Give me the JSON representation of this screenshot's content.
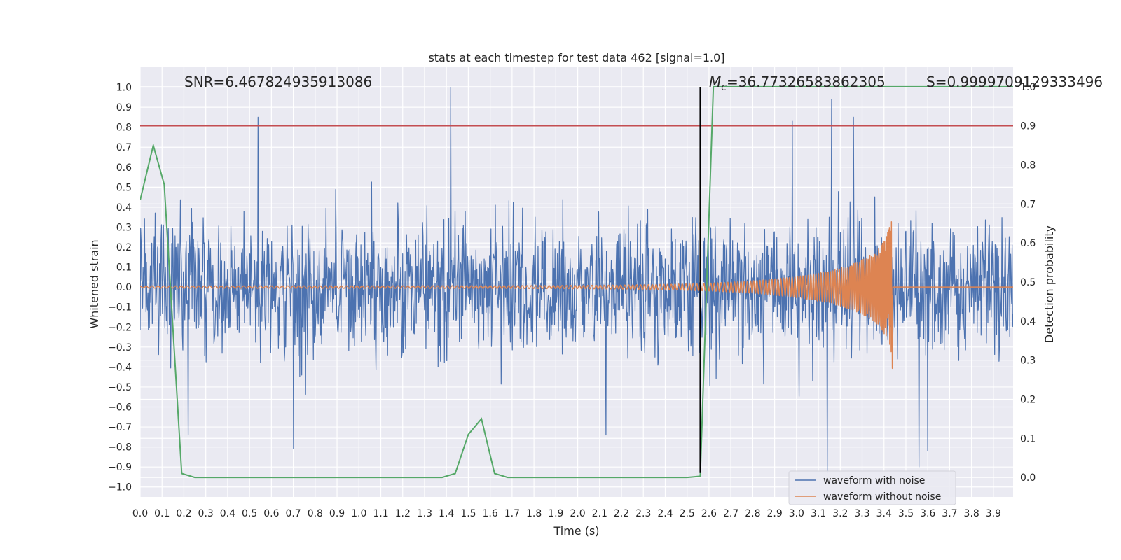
{
  "chart_data": {
    "type": "line",
    "title": "stats at each timestep for test data 462 [signal=1.0]",
    "xlabel": "Time (s)",
    "ylabel": "Whitened strain",
    "y2label": "Detection probability",
    "xlim": [
      0.0,
      3.99
    ],
    "ylim": [
      -1.05,
      1.1
    ],
    "y2lim": [
      -0.05,
      1.05
    ],
    "xticks": [
      0.0,
      0.1,
      0.2,
      0.3,
      0.4,
      0.5,
      0.6,
      0.7,
      0.8,
      0.9,
      1.0,
      1.1,
      1.2,
      1.3,
      1.4,
      1.5,
      1.6,
      1.7,
      1.8,
      1.9,
      2.0,
      2.1,
      2.2,
      2.3,
      2.4,
      2.5,
      2.6,
      2.7,
      2.8,
      2.9,
      3.0,
      3.1,
      3.2,
      3.3,
      3.4,
      3.5,
      3.6,
      3.7,
      3.8,
      3.9
    ],
    "xtick_labels": [
      "0.0",
      "0.1",
      "0.2",
      "0.3",
      "0.4",
      "0.5",
      "0.6",
      "0.7",
      "0.8",
      "0.9",
      "1.0",
      "1.1",
      "1.2",
      "1.3",
      "1.4",
      "1.5",
      "1.6",
      "1.7",
      "1.8",
      "1.9",
      "2.0",
      "2.1",
      "2.2",
      "2.3",
      "2.4",
      "2.5",
      "2.6",
      "2.7",
      "2.8",
      "2.9",
      "3.0",
      "3.1",
      "3.2",
      "3.3",
      "3.4",
      "3.5",
      "3.6",
      "3.7",
      "3.8",
      "3.9"
    ],
    "yticks": [
      -1.0,
      -0.9,
      -0.8,
      -0.7,
      -0.6,
      -0.5,
      -0.4,
      -0.3,
      -0.2,
      -0.1,
      0.0,
      0.1,
      0.2,
      0.3,
      0.4,
      0.5,
      0.6,
      0.7,
      0.8,
      0.9,
      1.0
    ],
    "ytick_labels": [
      "−1.0",
      "−0.9",
      "−0.8",
      "−0.7",
      "−0.6",
      "−0.5",
      "−0.4",
      "−0.3",
      "−0.2",
      "−0.1",
      "0.0",
      "0.1",
      "0.2",
      "0.3",
      "0.4",
      "0.5",
      "0.6",
      "0.7",
      "0.8",
      "0.9",
      "1.0"
    ],
    "y2ticks": [
      0.0,
      0.1,
      0.2,
      0.3,
      0.4,
      0.5,
      0.6,
      0.7,
      0.8,
      0.9,
      1.0
    ],
    "y2tick_labels": [
      "0.0",
      "0.1",
      "0.2",
      "0.3",
      "0.4",
      "0.5",
      "0.6",
      "0.7",
      "0.8",
      "0.9",
      "1.0"
    ],
    "grid": true,
    "legend_position": "bottom-right",
    "annotations": {
      "snr": "SNR=6.467824935913086",
      "mc_symbol": "M",
      "mc_subscript": "c",
      "mc_value": "=36.77326583862305",
      "s": "S=0.9999709129333496"
    },
    "threshold_line": {
      "axis": "y2",
      "value": 0.9,
      "color": "#c44e52"
    },
    "marker_line": {
      "x": 2.56,
      "y_from": -0.93,
      "y_to": 1.0,
      "color": "#000000"
    },
    "colors": {
      "noise": "#4c72b0",
      "clean": "#dd8452",
      "probability": "#55a868",
      "background": "#eaeaf2",
      "grid": "#ffffff"
    },
    "series": [
      {
        "name": "waveform with noise",
        "axis": "y",
        "color": "#4c72b0",
        "t_range": [
          0.0,
          3.99
        ],
        "envelope_typical": 0.4,
        "peaks": [
          [
            0.54,
            0.85
          ],
          [
            1.42,
            1.0
          ],
          [
            3.16,
            0.94
          ],
          [
            3.26,
            0.85
          ],
          [
            2.98,
            0.83
          ],
          [
            0.7,
            -0.81
          ],
          [
            3.14,
            -0.93
          ],
          [
            3.56,
            -0.9
          ],
          [
            3.6,
            -0.82
          ],
          [
            0.22,
            -0.74
          ],
          [
            2.13,
            -0.74
          ]
        ]
      },
      {
        "name": "waveform without noise",
        "axis": "y",
        "color": "#dd8452",
        "t_range": [
          0.0,
          3.99
        ],
        "merger_time": 3.44,
        "peak_amplitude": 0.4
      },
      {
        "name": "",
        "axis": "y2",
        "color": "#55a868",
        "x": [
          0.0,
          0.06,
          0.11,
          0.19,
          0.25,
          0.5,
          0.93,
          1.38,
          1.44,
          1.5,
          1.56,
          1.62,
          1.68,
          2.5,
          2.56,
          2.62,
          3.99
        ],
        "values": [
          0.71,
          0.85,
          0.75,
          0.01,
          0.0,
          0.0,
          0.0,
          0.0,
          0.01,
          0.11,
          0.15,
          0.01,
          0.0,
          0.0,
          0.003,
          1.0,
          1.0
        ]
      }
    ]
  }
}
